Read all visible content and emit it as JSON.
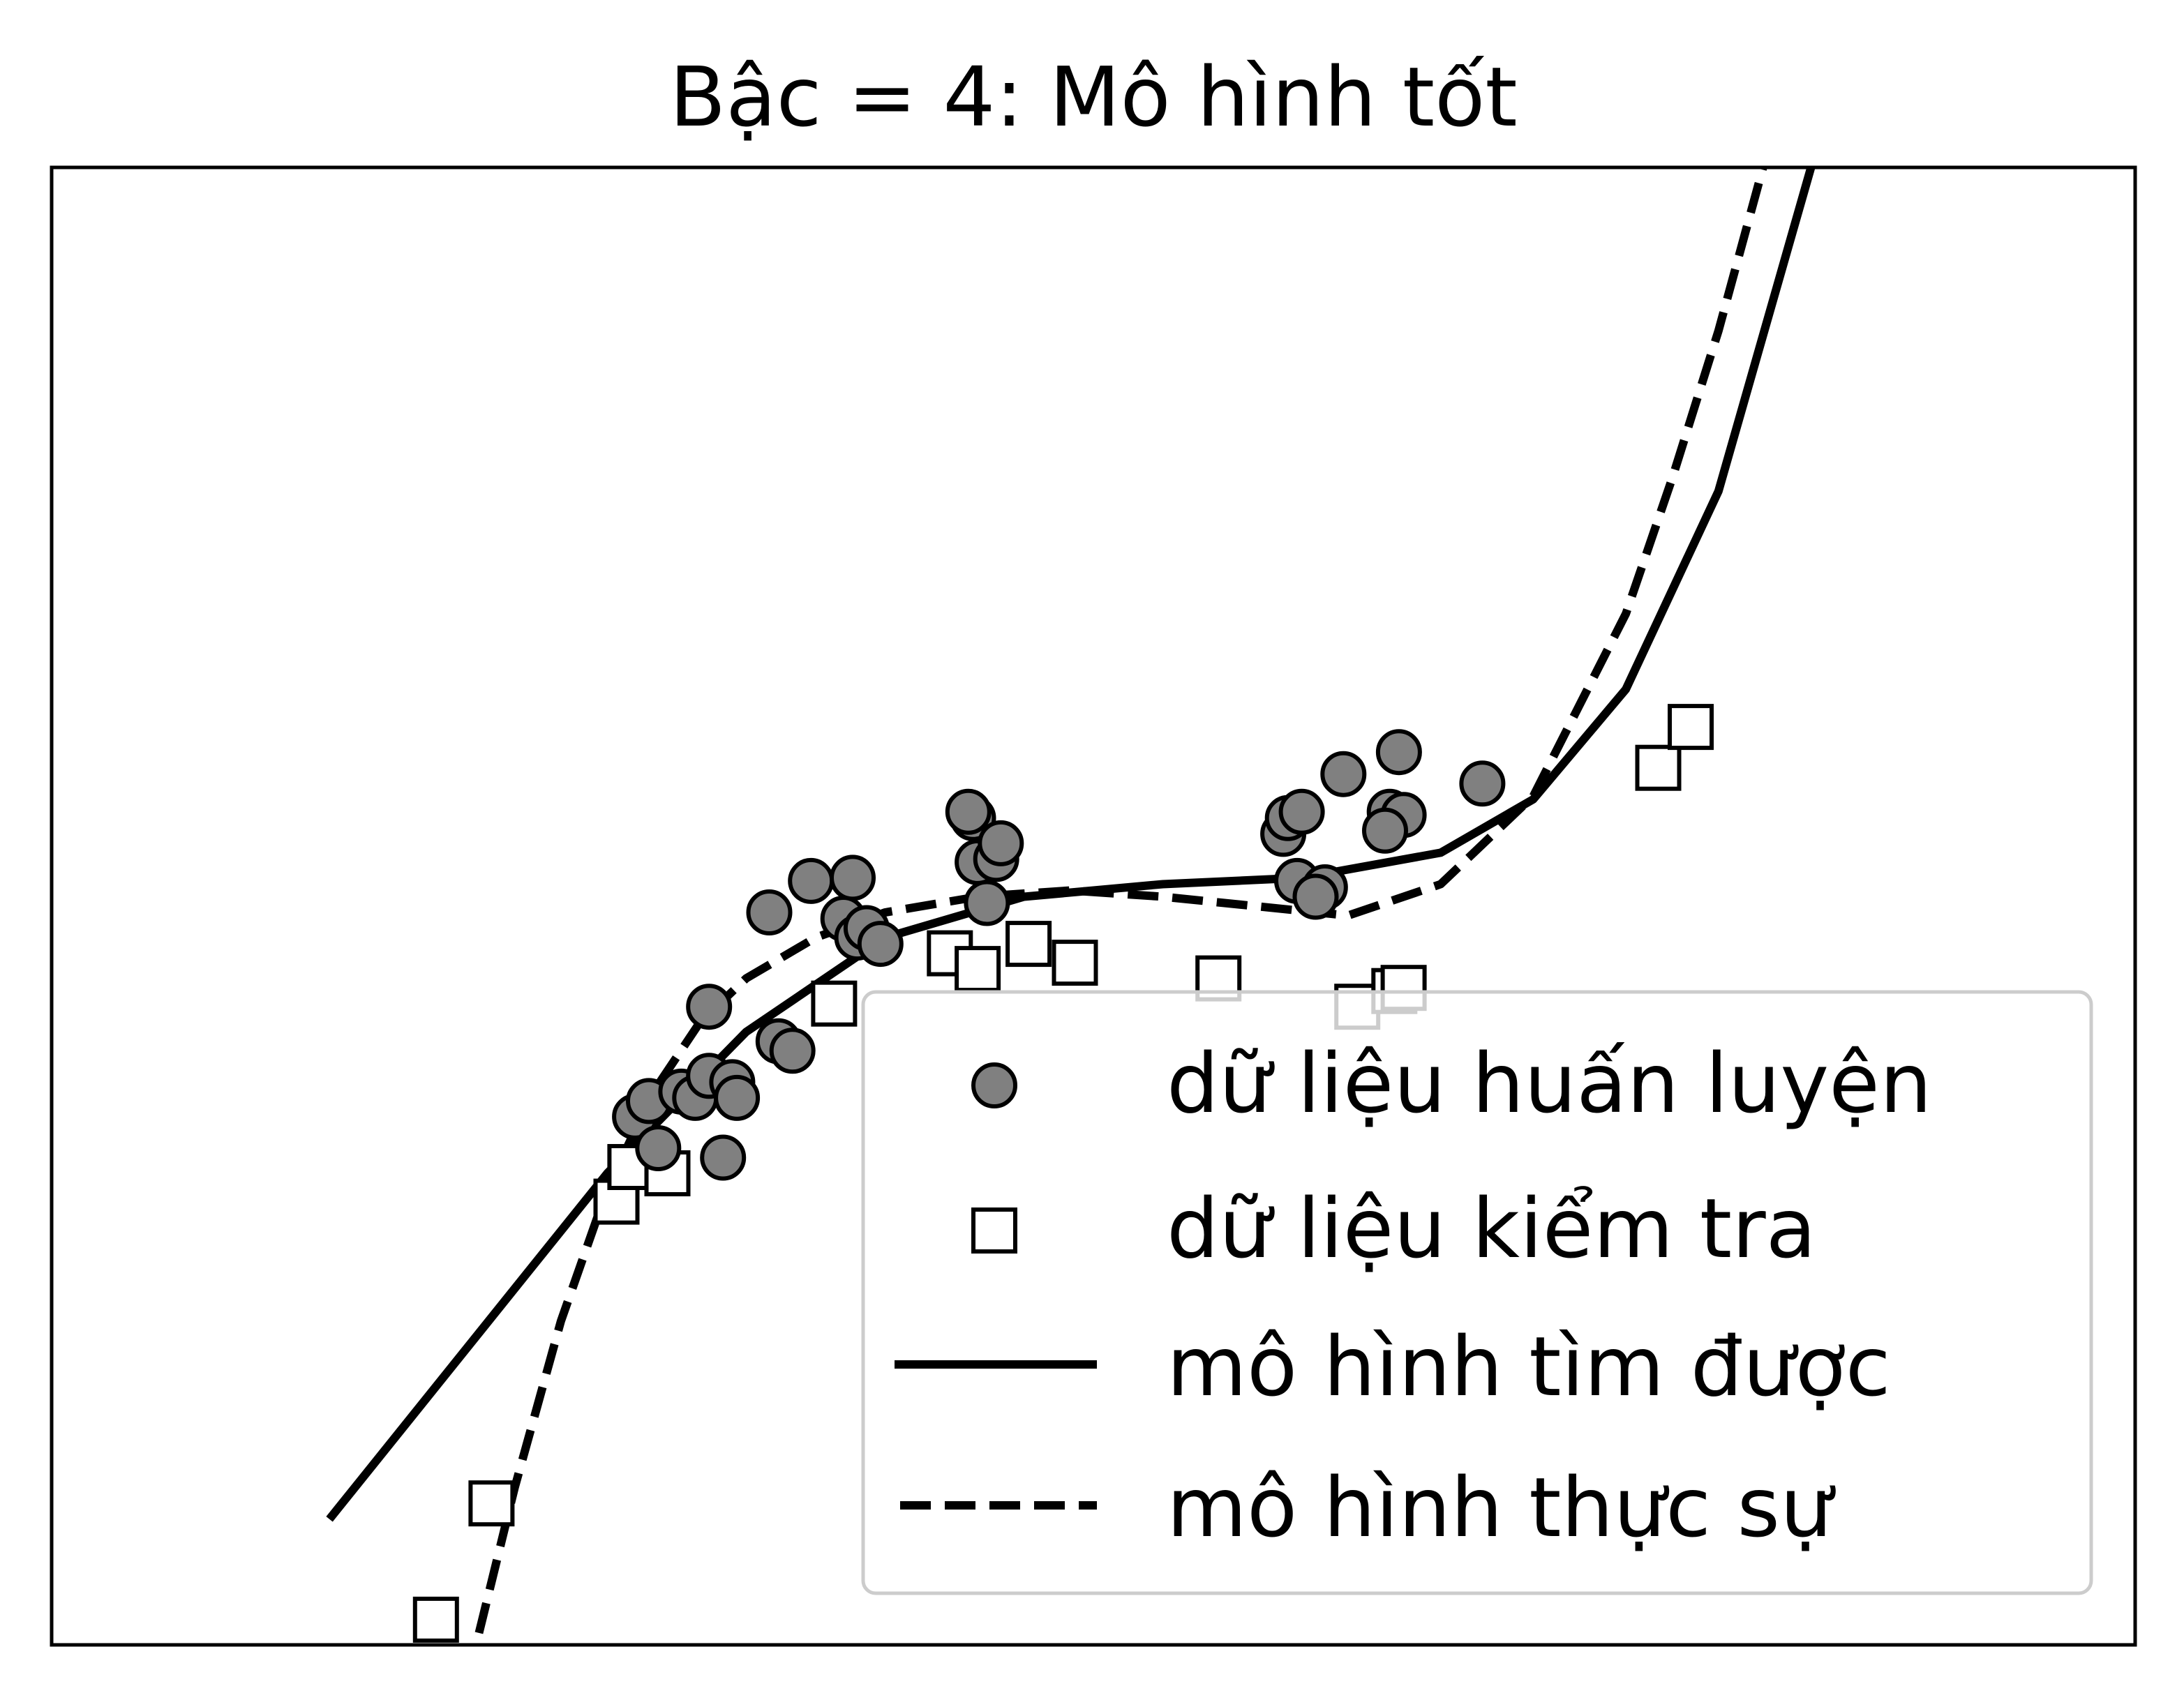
{
  "chart_data": {
    "type": "scatter",
    "title": "Bậc = 4: Mô hình tốt",
    "xlabel": "",
    "ylabel": "",
    "xlim": [
      -2.5,
      2.0
    ],
    "ylim": [
      -3.5,
      1.2
    ],
    "ticks_visible": false,
    "grid": false,
    "legend_position": "bottom-right",
    "series": [
      {
        "name": "dữ liệu huấn luyện",
        "kind": "scatter",
        "marker": "circle",
        "color": "#808080",
        "edge_color": "#000000",
        "x": [
          -1.24,
          -1.21,
          -1.19,
          -1.14,
          -1.11,
          -1.08,
          -1.08,
          -1.05,
          -1.03,
          -1.02,
          -0.95,
          -0.93,
          -0.9,
          -0.86,
          -0.77,
          -0.79,
          -0.76,
          -0.74,
          -0.71,
          -0.51,
          -0.52,
          -0.5,
          -0.46,
          -0.48,
          -0.45,
          0.16,
          0.17,
          0.19,
          0.2,
          0.25,
          0.29,
          0.23,
          0.39,
          0.42,
          0.38,
          0.41,
          0.59
        ],
        "y": [
          -1.82,
          -1.77,
          -1.92,
          -1.74,
          -1.76,
          -1.69,
          -1.47,
          -1.95,
          -1.71,
          -1.76,
          -1.17,
          -1.58,
          -1.61,
          -1.07,
          -1.06,
          -1.19,
          -1.25,
          -1.22,
          -1.27,
          -0.87,
          -0.85,
          -1.01,
          -1.0,
          -1.14,
          -0.95,
          -0.92,
          -0.87,
          -1.07,
          -0.85,
          -1.09,
          -0.73,
          -1.12,
          -0.85,
          -0.86,
          -0.91,
          -0.66,
          -0.76
        ]
      },
      {
        "name": "dữ liệu kiểm tra",
        "kind": "scatter",
        "marker": "square",
        "color": "#ffffff",
        "edge_color": "#000000",
        "x": [
          -1.28,
          -1.25,
          -1.17,
          -1.55,
          -1.67,
          -0.81,
          -0.56,
          -0.5,
          -0.39,
          -0.29,
          0.02,
          0.32,
          0.4,
          0.42,
          0.97,
          1.04
        ],
        "y": [
          -2.09,
          -1.98,
          -2.0,
          -3.05,
          -3.42,
          -1.46,
          -1.3,
          -1.35,
          -1.27,
          -1.33,
          -1.38,
          -1.47,
          -1.42,
          -1.41,
          -0.71,
          -0.58
        ]
      },
      {
        "name": "mô hình tìm được",
        "kind": "line",
        "style": "solid",
        "color": "#000000",
        "x": [
          -1.9,
          -1.6,
          -1.3,
          -1.0,
          -0.7,
          -0.4,
          -0.1,
          0.2,
          0.5,
          0.7,
          0.9,
          1.1,
          1.3
        ],
        "y": [
          -3.1,
          -2.55,
          -2.0,
          -1.55,
          -1.25,
          -1.12,
          -1.08,
          -1.06,
          -0.98,
          -0.81,
          -0.46,
          0.17,
          1.2
        ]
      },
      {
        "name": "mô hình thực sự",
        "kind": "line",
        "style": "dashed",
        "color": "#000000",
        "x": [
          -1.6,
          -1.5,
          -1.4,
          -1.3,
          -1.2,
          -1.1,
          -1.0,
          -0.85,
          -0.7,
          -0.5,
          -0.3,
          -0.1,
          0.1,
          0.3,
          0.5,
          0.7,
          0.9,
          1.0,
          1.1,
          1.2
        ],
        "y": [
          -3.6,
          -3.0,
          -2.47,
          -2.05,
          -1.74,
          -1.52,
          -1.38,
          -1.25,
          -1.17,
          -1.12,
          -1.1,
          -1.12,
          -1.15,
          -1.18,
          -1.08,
          -0.8,
          -0.22,
          0.21,
          0.68,
          1.22
        ]
      }
    ]
  }
}
